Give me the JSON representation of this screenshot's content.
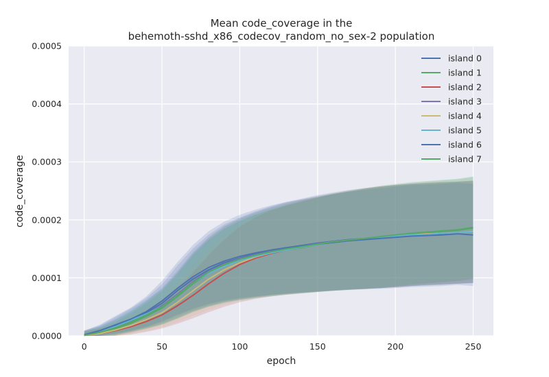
{
  "chart_data": {
    "type": "line",
    "title_line1": "Mean code_coverage in the",
    "title_line2": "behemoth-sshd_x86_codecov_random_no_sex-2 population",
    "xlabel": "epoch",
    "ylabel": "code_coverage",
    "xlim": [
      -10,
      263
    ],
    "ylim": [
      0,
      0.0005
    ],
    "xticks": [
      0,
      50,
      100,
      150,
      200,
      250
    ],
    "xtick_labels": [
      "0",
      "50",
      "100",
      "150",
      "200",
      "250"
    ],
    "yticks": [
      0,
      0.0001,
      0.0002,
      0.0003,
      0.0004,
      0.0005
    ],
    "ytick_labels": [
      "0.0000",
      "0.0001",
      "0.0002",
      "0.0003",
      "0.0004",
      "0.0005"
    ],
    "grid": true,
    "legend_position": "top-right",
    "x": [
      0,
      10,
      20,
      30,
      40,
      50,
      60,
      70,
      80,
      90,
      100,
      110,
      120,
      130,
      140,
      150,
      160,
      170,
      180,
      190,
      200,
      210,
      220,
      230,
      240,
      250
    ],
    "series": [
      {
        "name": "island 0",
        "color": "#4c72b0",
        "values": [
          2e-06,
          8e-06,
          1.8e-05,
          2.8e-05,
          4e-05,
          5.6e-05,
          7.8e-05,
          9.8e-05,
          0.000114,
          0.000126,
          0.000134,
          0.000141,
          0.000147,
          0.000152,
          0.000156,
          0.00016,
          0.000163,
          0.000166,
          0.000168,
          0.00017,
          0.000172,
          0.000174,
          0.000175,
          0.000176,
          0.000178,
          0.000179
        ]
      },
      {
        "name": "island 1",
        "color": "#55a868",
        "values": [
          1e-06,
          5e-06,
          1.2e-05,
          2.2e-05,
          3.4e-05,
          4.8e-05,
          6.8e-05,
          9e-05,
          0.000108,
          0.000121,
          0.00013,
          0.000137,
          0.000143,
          0.000148,
          0.000152,
          0.000157,
          0.000161,
          0.000164,
          0.000167,
          0.00017,
          0.000173,
          0.000176,
          0.000178,
          0.00018,
          0.000182,
          0.000186
        ]
      },
      {
        "name": "island 2",
        "color": "#c44e52",
        "values": [
          1e-06,
          4e-06,
          9e-06,
          1.6e-05,
          2.5e-05,
          3.6e-05,
          5.2e-05,
          7e-05,
          9e-05,
          0.000108,
          0.000123,
          0.000134,
          0.000142,
          0.000148,
          0.000153,
          0.000157,
          0.000161,
          0.000164,
          0.000167,
          0.00017,
          0.000172,
          0.000174,
          0.000176,
          0.000177,
          0.000178,
          0.00018
        ]
      },
      {
        "name": "island 3",
        "color": "#8172b2",
        "values": [
          2e-06,
          7e-06,
          1.5e-05,
          2.5e-05,
          3.7e-05,
          5.2e-05,
          7.2e-05,
          9.4e-05,
          0.000111,
          0.000124,
          0.000133,
          0.00014,
          0.000146,
          0.000151,
          0.000155,
          0.000159,
          0.000162,
          0.000165,
          0.000168,
          0.00017,
          0.000172,
          0.000174,
          0.000176,
          0.000177,
          0.000178,
          0.000179
        ]
      },
      {
        "name": "island 4",
        "color": "#ccb974",
        "values": [
          1e-06,
          4e-06,
          1e-05,
          1.8e-05,
          2.8e-05,
          4e-05,
          5.8e-05,
          7.8e-05,
          9.8e-05,
          0.000114,
          0.000126,
          0.000136,
          0.000143,
          0.000149,
          0.000154,
          0.000158,
          0.000162,
          0.000165,
          0.000168,
          0.00017,
          0.000172,
          0.000174,
          0.000176,
          0.000177,
          0.000178,
          0.00018
        ]
      },
      {
        "name": "island 5",
        "color": "#64b5cd",
        "values": [
          2e-06,
          7e-06,
          1.6e-05,
          2.7e-05,
          3.8e-05,
          5e-05,
          7e-05,
          9.2e-05,
          0.000108,
          0.00012,
          0.00013,
          0.000137,
          0.000143,
          0.000148,
          0.000153,
          0.000157,
          0.000161,
          0.000164,
          0.000167,
          0.000169,
          0.000172,
          0.000174,
          0.000175,
          0.000177,
          0.000178,
          0.000179
        ]
      },
      {
        "name": "island 6",
        "color": "#4c72b0",
        "values": [
          2e-06,
          9e-06,
          1.9e-05,
          2.9e-05,
          4.2e-05,
          6e-05,
          8.2e-05,
          0.000102,
          0.000118,
          0.000129,
          0.000137,
          0.000143,
          0.000148,
          0.000152,
          0.000155,
          0.000158,
          0.000161,
          0.000164,
          0.000166,
          0.000168,
          0.00017,
          0.000172,
          0.000173,
          0.000174,
          0.000176,
          0.000174
        ]
      },
      {
        "name": "island 7",
        "color": "#55a868",
        "values": [
          1e-06,
          6e-06,
          1.4e-05,
          2.4e-05,
          3.6e-05,
          5e-05,
          7e-05,
          9.2e-05,
          0.00011,
          0.000123,
          0.000132,
          0.000139,
          0.000145,
          0.00015,
          0.000154,
          0.000158,
          0.000162,
          0.000165,
          0.000168,
          0.000171,
          0.000174,
          0.000177,
          0.000179,
          0.000181,
          0.000183,
          0.000187
        ]
      }
    ]
  }
}
